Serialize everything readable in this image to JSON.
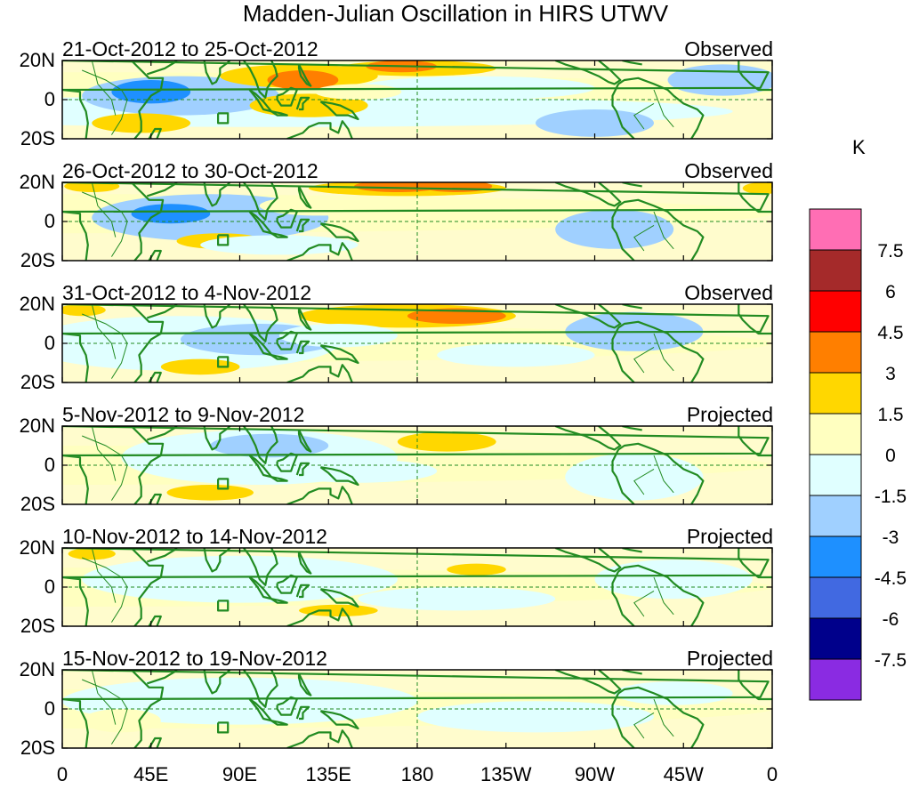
{
  "title": "Madden-Julian Oscillation in HIRS UTWV",
  "panels": [
    {
      "date_range": "21-Oct-2012 to 25-Oct-2012",
      "status": "Observed"
    },
    {
      "date_range": "26-Oct-2012 to 30-Oct-2012",
      "status": "Observed"
    },
    {
      "date_range": "31-Oct-2012 to 4-Nov-2012",
      "status": "Observed"
    },
    {
      "date_range": "5-Nov-2012 to 9-Nov-2012",
      "status": "Projected"
    },
    {
      "date_range": "10-Nov-2012 to 14-Nov-2012",
      "status": "Projected"
    },
    {
      "date_range": "15-Nov-2012 to 19-Nov-2012",
      "status": "Projected"
    }
  ],
  "lat_ticks": [
    "20N",
    "0",
    "20S"
  ],
  "lon_ticks": [
    "0",
    "45E",
    "90E",
    "135E",
    "180",
    "135W",
    "90W",
    "45W",
    "0"
  ],
  "colorbar": {
    "unit": "K",
    "tick_labels": [
      "7.5",
      "6",
      "4.5",
      "3",
      "1.5",
      "0",
      "-1.5",
      "-3",
      "-4.5",
      "-6",
      "-7.5"
    ],
    "colors_top_to_bottom": [
      "#ff6eb4",
      "#a52a2a",
      "#ff0000",
      "#ff7f00",
      "#ffd700",
      "#ffffc0",
      "#e0ffff",
      "#a0d0ff",
      "#1e90ff",
      "#4169e1",
      "#00008b",
      "#8a2be2"
    ]
  },
  "map_colors": {
    "coast": "#228B22",
    "neutral_pos": "#fffccd",
    "neutral_neg": "#e0f8ff"
  }
}
